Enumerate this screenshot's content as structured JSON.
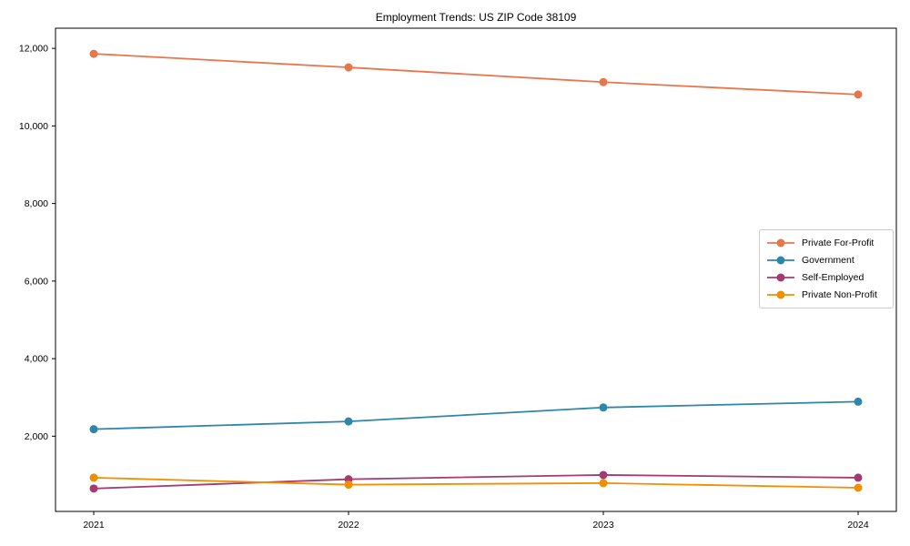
{
  "figure": {
    "background": "#ffffff",
    "axis_color": "#000000",
    "legend_border_color": "#cccccc"
  },
  "chart_data": {
    "type": "line",
    "title": "Employment Trends: US ZIP Code 38109",
    "x": [
      2021,
      2022,
      2023,
      2024
    ],
    "x_tick_labels": [
      "2021",
      "2022",
      "2023",
      "2024"
    ],
    "xlim": [
      2020.85,
      2024.15
    ],
    "ylim": [
      60,
      12520
    ],
    "y_ticks": [
      2000,
      4000,
      6000,
      8000,
      10000,
      12000
    ],
    "y_tick_labels": [
      "2,000",
      "4,000",
      "6,000",
      "8,000",
      "10,000",
      "12,000"
    ],
    "grid": false,
    "legend_position": "center-right",
    "marker": "circle",
    "series": [
      {
        "name": "Private For-Profit",
        "color": "#E8764B",
        "values": [
          11860,
          11510,
          11130,
          10810
        ]
      },
      {
        "name": "Government",
        "color": "#2E86AB",
        "values": [
          2180,
          2380,
          2740,
          2890
        ]
      },
      {
        "name": "Self-Employed",
        "color": "#A23B72",
        "values": [
          650,
          890,
          1000,
          930
        ]
      },
      {
        "name": "Private Non-Profit",
        "color": "#F18F01",
        "values": [
          930,
          750,
          790,
          670
        ]
      }
    ]
  }
}
